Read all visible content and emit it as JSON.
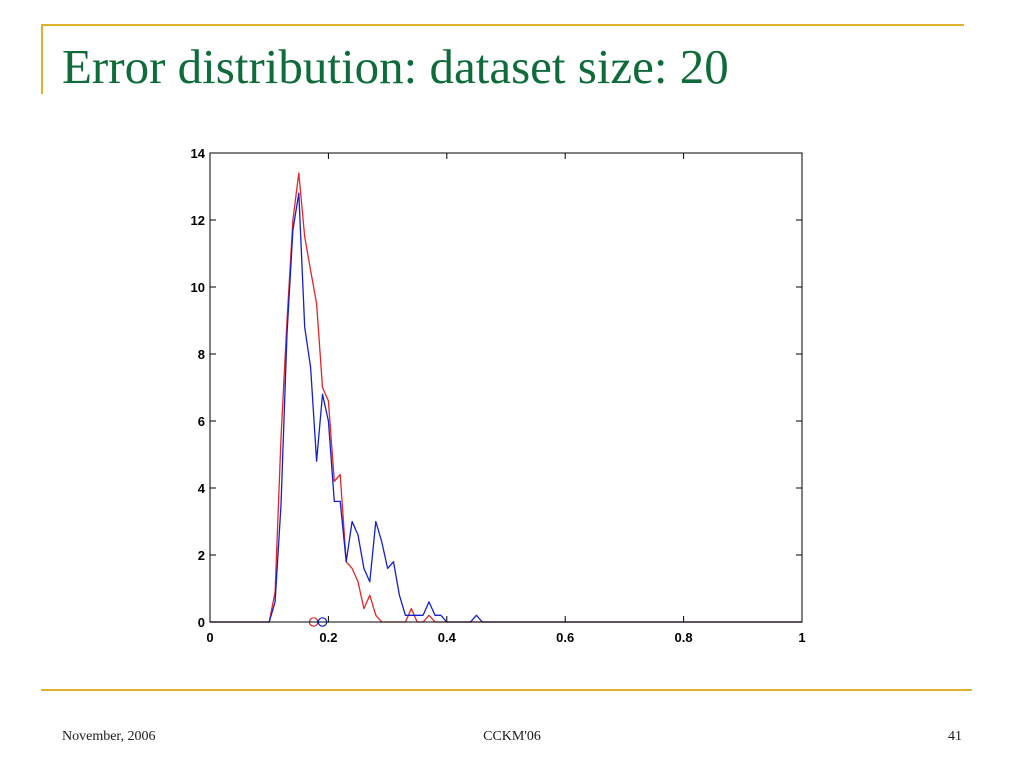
{
  "slide": {
    "title": "Error distribution: dataset size: 20",
    "footer_left": "November, 2006",
    "footer_center": "CCKM'06",
    "footer_right": "41"
  },
  "colors": {
    "accent_rule": "#e0b12a",
    "title": "#0e6b3a",
    "series_red": "#e0262a",
    "series_blue": "#1620c8"
  },
  "chart_data": {
    "type": "line",
    "title": "",
    "xlabel": "",
    "ylabel": "",
    "xlim": [
      0,
      1
    ],
    "ylim": [
      0,
      14
    ],
    "xticks": [
      0,
      0.2,
      0.4,
      0.6,
      0.8,
      1
    ],
    "xtick_labels": [
      "0",
      "0.2",
      "0.4",
      "0.6",
      "0.8",
      "1"
    ],
    "yticks": [
      0,
      2,
      4,
      6,
      8,
      10,
      12,
      14
    ],
    "ytick_labels": [
      "0",
      "2",
      "4",
      "6",
      "8",
      "10",
      "12",
      "14"
    ],
    "grid": false,
    "series": [
      {
        "color": "#e0262a",
        "x": [
          0,
          0.1,
          0.11,
          0.12,
          0.13,
          0.14,
          0.15,
          0.16,
          0.17,
          0.18,
          0.19,
          0.2,
          0.21,
          0.22,
          0.23,
          0.24,
          0.25,
          0.26,
          0.27,
          0.28,
          0.29,
          0.3,
          0.31,
          0.32,
          0.33,
          0.34,
          0.35,
          0.36,
          0.37,
          0.38,
          1.0
        ],
        "y": [
          0,
          0,
          0.9,
          5.5,
          9.0,
          12.0,
          13.4,
          11.5,
          10.5,
          9.5,
          7.0,
          6.6,
          4.2,
          4.4,
          1.8,
          1.6,
          1.2,
          0.4,
          0.8,
          0.2,
          0,
          0,
          0,
          0,
          0,
          0.4,
          0,
          0,
          0.2,
          0,
          0
        ],
        "marker_x": 0.175
      },
      {
        "color": "#1620c8",
        "x": [
          0,
          0.1,
          0.11,
          0.12,
          0.13,
          0.14,
          0.15,
          0.16,
          0.17,
          0.18,
          0.19,
          0.2,
          0.21,
          0.22,
          0.23,
          0.24,
          0.25,
          0.26,
          0.27,
          0.28,
          0.29,
          0.3,
          0.31,
          0.32,
          0.33,
          0.34,
          0.35,
          0.36,
          0.37,
          0.38,
          0.39,
          0.4,
          0.43,
          0.44,
          0.45,
          0.46,
          1.0
        ],
        "y": [
          0,
          0,
          0.6,
          3.5,
          8.6,
          11.7,
          12.8,
          8.8,
          7.6,
          4.8,
          6.8,
          6.0,
          3.6,
          3.6,
          1.8,
          3.0,
          2.6,
          1.6,
          1.2,
          3.0,
          2.4,
          1.6,
          1.8,
          0.8,
          0.2,
          0.2,
          0.2,
          0.2,
          0.6,
          0.2,
          0.2,
          0,
          0,
          0,
          0.2,
          0,
          0
        ],
        "marker_x": 0.19
      }
    ]
  }
}
